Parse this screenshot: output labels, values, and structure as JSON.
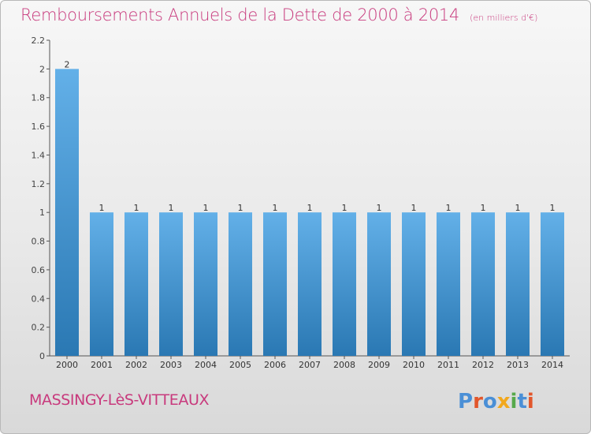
{
  "header": {
    "title": "Remboursements Annuels de la Dette de 2000 à 2014",
    "subtitle": "(en milliers d'€)"
  },
  "footer": {
    "commune": "MASSINGY-LèS-VITTEAUX",
    "brand": "Proxiti"
  },
  "colors": {
    "title": "#c83a7d",
    "bar_light": "#63b0e8",
    "bar_dark": "#2a78b3"
  },
  "chart_data": {
    "type": "bar",
    "categories": [
      "2000",
      "2001",
      "2002",
      "2003",
      "2004",
      "2005",
      "2006",
      "2007",
      "2008",
      "2009",
      "2010",
      "2011",
      "2012",
      "2013",
      "2014"
    ],
    "values": [
      2,
      1,
      1,
      1,
      1,
      1,
      1,
      1,
      1,
      1,
      1,
      1,
      1,
      1,
      1
    ],
    "data_labels": [
      "2",
      "1",
      "1",
      "1",
      "1",
      "1",
      "1",
      "1",
      "1",
      "1",
      "1",
      "1",
      "1",
      "1",
      "1"
    ],
    "y_ticks": [
      "0",
      "0.2",
      "0.4",
      "0.6",
      "0.8",
      "1",
      "1.2",
      "1.4",
      "1.6",
      "1.8",
      "2",
      "2.2"
    ],
    "ylim": [
      0,
      2.2
    ],
    "title": "Remboursements Annuels de la Dette de 2000 à 2014",
    "subtitle": "(en milliers d'€)",
    "xlabel": "",
    "ylabel": "",
    "grid": false,
    "legend": "none"
  }
}
